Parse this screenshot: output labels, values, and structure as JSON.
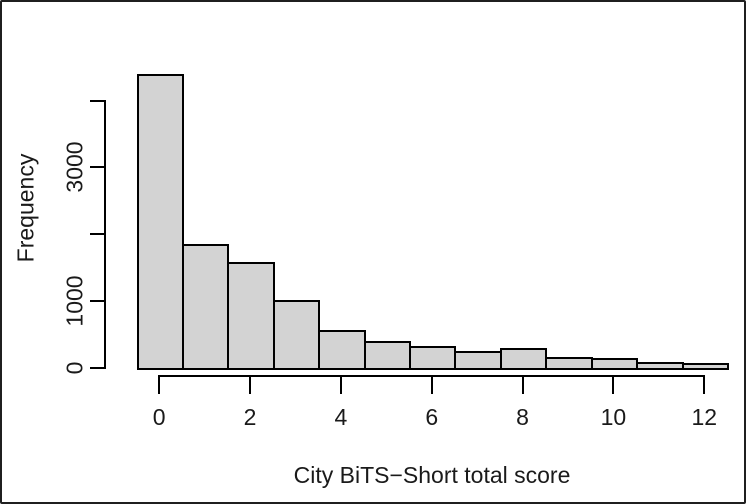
{
  "figure": {
    "title": "",
    "background": "#ffffff",
    "frame_border_color": "#1f1f1f"
  },
  "colors": {
    "bar_fill": "#d3d3d3",
    "bar_border": "#000000",
    "axis": "#000000",
    "text": "#1a1a1a"
  },
  "chart_data": {
    "type": "bar",
    "subtype": "histogram",
    "title": "",
    "xlabel": "City BiTS−Short total score",
    "ylabel": "Frequency",
    "categories": [
      0,
      1,
      2,
      3,
      4,
      5,
      6,
      7,
      8,
      9,
      10,
      11,
      12
    ],
    "values": [
      4400,
      1860,
      1590,
      1020,
      570,
      410,
      330,
      260,
      300,
      160,
      145,
      90,
      80
    ],
    "bin_width": 1,
    "xlim": [
      -0.5,
      12.5
    ],
    "ylim": [
      0,
      4400
    ],
    "xticks": [
      {
        "v": 0,
        "label": "0"
      },
      {
        "v": 2,
        "label": "2"
      },
      {
        "v": 4,
        "label": "4"
      },
      {
        "v": 6,
        "label": "6"
      },
      {
        "v": 8,
        "label": "8"
      },
      {
        "v": 10,
        "label": "10"
      },
      {
        "v": 12,
        "label": "12"
      }
    ],
    "yticks": [
      {
        "v": 0,
        "label": "0"
      },
      {
        "v": 1000,
        "label": "1000"
      },
      {
        "v": 2000,
        "label": ""
      },
      {
        "v": 3000,
        "label": "3000"
      },
      {
        "v": 4000,
        "label": ""
      }
    ],
    "grid": false,
    "legend": null
  }
}
